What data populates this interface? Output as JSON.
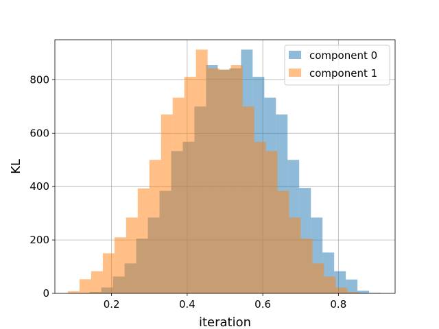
{
  "chart_data": {
    "type": "bar",
    "subtype": "overlapping-histogram",
    "xlabel": "iteration",
    "ylabel": "KL",
    "xlim": [
      0.05,
      0.95
    ],
    "ylim": [
      0,
      950
    ],
    "xticks": [
      0.2,
      0.4,
      0.6,
      0.8
    ],
    "xtick_labels": [
      "0.2",
      "0.4",
      "0.6",
      "0.8"
    ],
    "yticks": [
      0,
      200,
      400,
      600,
      800
    ],
    "ytick_labels": [
      "0",
      "200",
      "400",
      "600",
      "800"
    ],
    "grid": true,
    "legend_position": "top-right",
    "series": [
      {
        "name": "component 0",
        "color": "#1f77b4",
        "alpha": 0.5,
        "bin_edges": [
          0.142,
          0.1728,
          0.2036,
          0.2344,
          0.2652,
          0.296,
          0.3268,
          0.3576,
          0.3884,
          0.4192,
          0.45,
          0.4808,
          0.5116,
          0.5424,
          0.5732,
          0.604,
          0.6348,
          0.6656,
          0.6964,
          0.7272,
          0.758,
          0.7888,
          0.8196,
          0.8504,
          0.8812,
          0.912
        ],
        "values": [
          5,
          22,
          63,
          112,
          205,
          284,
          384,
          533,
          568,
          700,
          855,
          838,
          843,
          913,
          811,
          733,
          670,
          500,
          395,
          284,
          153,
          83,
          52,
          10,
          2
        ]
      },
      {
        "name": "component 1",
        "color": "#ff7f0e",
        "alpha": 0.5,
        "bin_edges": [
          0.0844,
          0.1152,
          0.146,
          0.1768,
          0.2076,
          0.2384,
          0.2692,
          0.3,
          0.3308,
          0.3616,
          0.3924,
          0.4232,
          0.454,
          0.4848,
          0.5156,
          0.5464,
          0.5772,
          0.608,
          0.6388,
          0.6696,
          0.7004,
          0.7312,
          0.762,
          0.7928,
          0.8236,
          0.8544
        ],
        "values": [
          8,
          53,
          83,
          150,
          210,
          284,
          393,
          500,
          670,
          733,
          811,
          913,
          843,
          838,
          855,
          700,
          568,
          533,
          384,
          284,
          205,
          112,
          63,
          22,
          5
        ]
      }
    ]
  }
}
